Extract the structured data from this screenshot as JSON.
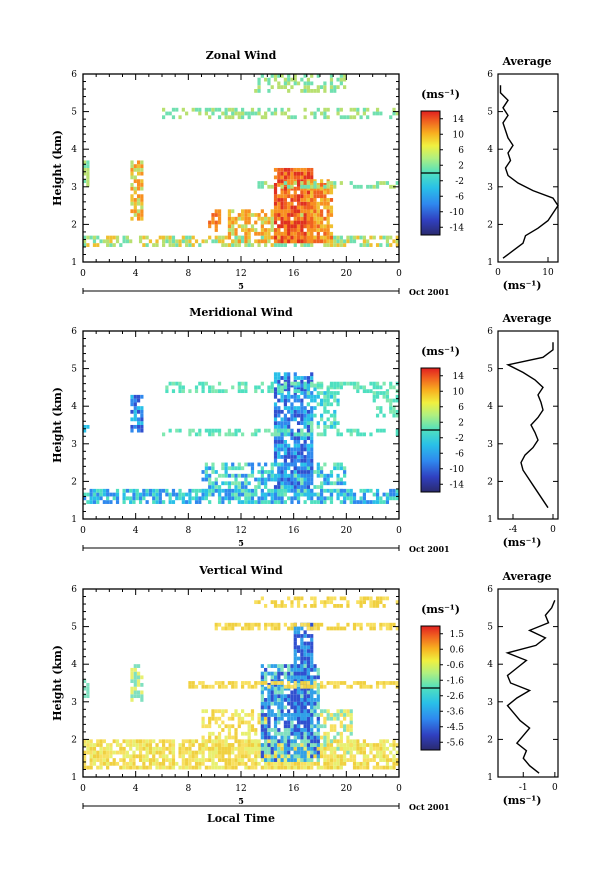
{
  "figure": {
    "xlabel": "Local Time",
    "xticks": [
      "0",
      "4",
      "8",
      "12",
      "16",
      "20",
      "0"
    ],
    "date_row": {
      "day": "5",
      "month_label": "Oct 2001"
    },
    "unit_label": "(ms⁻¹)",
    "avg_title": "Average"
  },
  "chart_data": [
    {
      "type": "heatmap",
      "title": "Zonal Wind",
      "ylabel": "Height (km)",
      "xlabel": "",
      "xlim": [
        0,
        24
      ],
      "ylim": [
        1,
        6
      ],
      "yticks": [
        "1",
        "2",
        "3",
        "4",
        "5",
        "6"
      ],
      "colorbar": {
        "min": -15,
        "max": 15,
        "ticks": [
          "14",
          "10",
          "6",
          "2",
          "-2",
          "-6",
          "-10",
          "-14"
        ]
      },
      "avg_profile": {
        "xlim": [
          0,
          12
        ],
        "xticks": [
          "0",
          "10"
        ],
        "xlabel": "(ms⁻¹)",
        "height_km": [
          1.1,
          1.3,
          1.5,
          1.7,
          1.9,
          2.1,
          2.3,
          2.5,
          2.7,
          2.9,
          3.1,
          3.3,
          3.5,
          3.7,
          3.9,
          4.1,
          4.3,
          4.5,
          4.7,
          4.9,
          5.1,
          5.3,
          5.5,
          5.7
        ],
        "value_ms": [
          1,
          3,
          5,
          5.5,
          8,
          10,
          11,
          12,
          11,
          7,
          4,
          2,
          1.5,
          2.5,
          2,
          3,
          2,
          1.5,
          1,
          2,
          1,
          2,
          0.5,
          0.5
        ]
      }
    },
    {
      "type": "heatmap",
      "title": "Meridional Wind",
      "ylabel": "Height (km)",
      "xlabel": "",
      "xlim": [
        0,
        24
      ],
      "ylim": [
        1,
        6
      ],
      "yticks": [
        "1",
        "2",
        "3",
        "4",
        "5",
        "6"
      ],
      "colorbar": {
        "min": -15,
        "max": 15,
        "ticks": [
          "14",
          "10",
          "6",
          "2",
          "-2",
          "-6",
          "-10",
          "-14"
        ]
      },
      "avg_profile": {
        "xlim": [
          -5.5,
          0.5
        ],
        "xticks": [
          "-4",
          "0"
        ],
        "xlabel": "(ms⁻¹)",
        "height_km": [
          1.3,
          1.5,
          1.7,
          1.9,
          2.1,
          2.3,
          2.5,
          2.7,
          2.9,
          3.1,
          3.3,
          3.5,
          3.7,
          3.9,
          4.1,
          4.3,
          4.5,
          4.7,
          4.9,
          5.1,
          5.3,
          5.5,
          5.7
        ],
        "value_ms": [
          -0.5,
          -1,
          -1.5,
          -2,
          -2.5,
          -3,
          -3.2,
          -2.8,
          -2,
          -1.5,
          -1.8,
          -2.2,
          -1.5,
          -1,
          -1.2,
          -1.5,
          -1,
          -1.8,
          -3,
          -4.5,
          -1,
          0,
          0
        ]
      }
    },
    {
      "type": "heatmap",
      "title": "Vertical Wind",
      "ylabel": "Height (km)",
      "xlabel": "Local Time",
      "xlim": [
        0,
        24
      ],
      "ylim": [
        1,
        6
      ],
      "yticks": [
        "1",
        "2",
        "3",
        "4",
        "5",
        "6"
      ],
      "colorbar": {
        "min": -6,
        "max": 2,
        "ticks": [
          "1.5",
          "0.6",
          "-0.6",
          "-1.6",
          "-2.6",
          "-3.6",
          "-4.5",
          "-5.6"
        ]
      },
      "avg_profile": {
        "xlim": [
          -1.8,
          0.1
        ],
        "xticks": [
          "-1",
          "0"
        ],
        "xlabel": "(ms⁻¹)",
        "height_km": [
          1.1,
          1.3,
          1.5,
          1.7,
          1.9,
          2.1,
          2.3,
          2.5,
          2.7,
          2.9,
          3.1,
          3.3,
          3.5,
          3.7,
          3.9,
          4.1,
          4.3,
          4.5,
          4.7,
          4.9,
          5.1,
          5.3,
          5.5,
          5.7
        ],
        "value_ms": [
          -0.5,
          -0.8,
          -1,
          -0.9,
          -1.2,
          -1,
          -0.8,
          -1.1,
          -1.3,
          -1.5,
          -1.2,
          -0.8,
          -1.4,
          -1.5,
          -1.2,
          -0.9,
          -1.5,
          -0.6,
          -0.3,
          -0.8,
          -0.2,
          -0.3,
          -0.1,
          0
        ]
      }
    }
  ]
}
